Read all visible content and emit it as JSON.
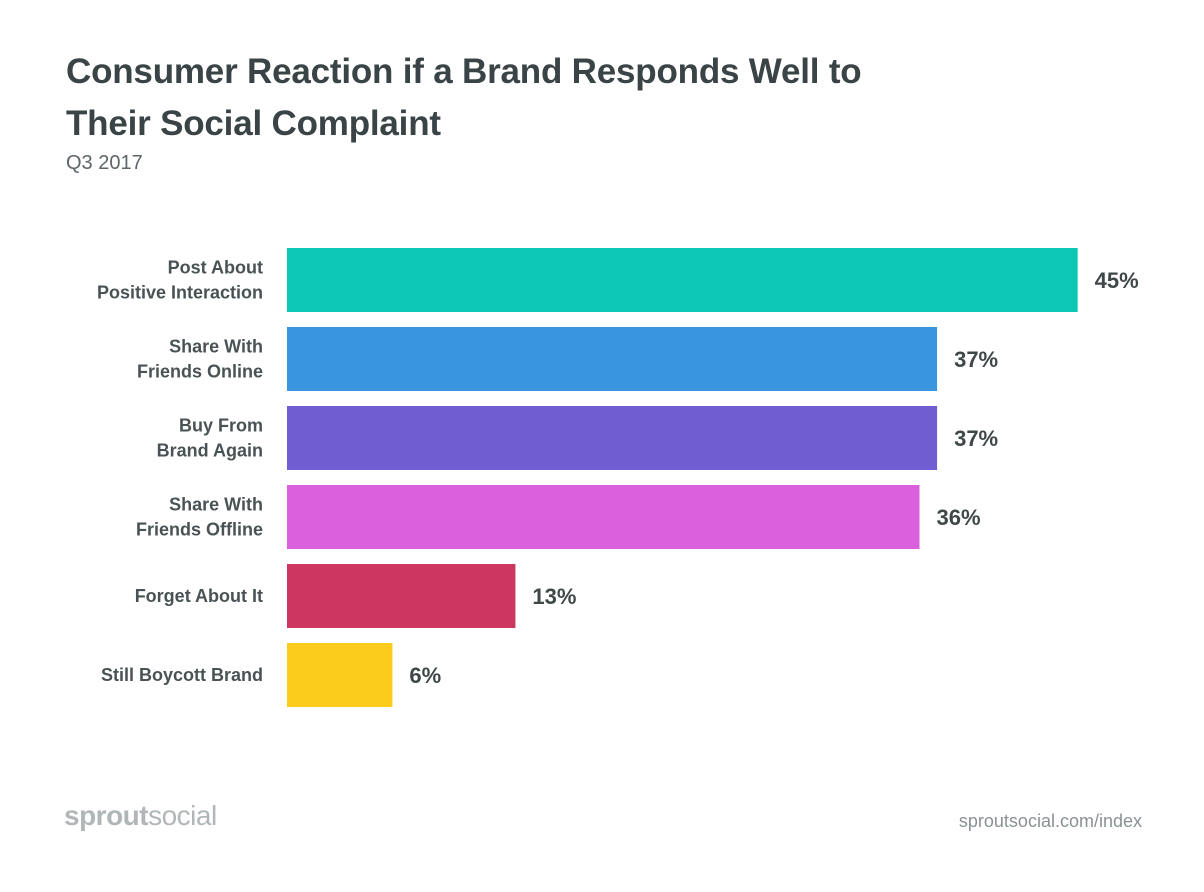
{
  "header": {
    "title_line1": "Consumer Reaction if a Brand Responds Well to",
    "title_line2": "Their Social Complaint",
    "subtitle": "Q3 2017"
  },
  "footer": {
    "logo_text_bold": "sprout",
    "logo_text_light": "social",
    "url": "sproutsocial.com/index"
  },
  "chart_data": {
    "type": "bar",
    "orientation": "horizontal",
    "title": "Consumer Reaction if a Brand Responds Well to Their Social Complaint",
    "subtitle": "Q3 2017",
    "categories": [
      [
        "Post About",
        "Positive Interaction"
      ],
      [
        "Share With",
        "Friends Online"
      ],
      [
        "Buy From",
        "Brand Again"
      ],
      [
        "Share With",
        "Friends Offline"
      ],
      [
        "Forget About It"
      ],
      [
        "Still Boycott Brand"
      ]
    ],
    "values": [
      45,
      37,
      37,
      36,
      13,
      6
    ],
    "value_labels": [
      "45%",
      "37%",
      "37%",
      "36%",
      "13%",
      "6%"
    ],
    "colors": [
      "#0bc7b4",
      "#3a95e0",
      "#6f5dd1",
      "#db60dd",
      "#cc365f",
      "#fccc1c"
    ],
    "unit": "%",
    "grid": false,
    "legend": "none"
  }
}
